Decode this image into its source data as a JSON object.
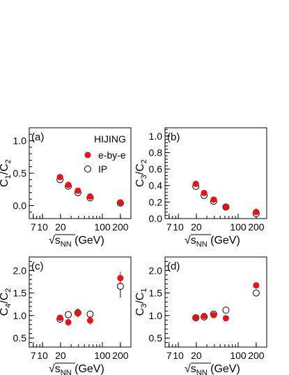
{
  "chart_data": [
    {
      "type": "scatter",
      "panel_label": "(a)",
      "x_axis": {
        "scale": "log",
        "range": [
          6,
          300
        ],
        "tick_labels": [
          "7",
          "10",
          "20",
          "100",
          "200"
        ],
        "label_main": "√s",
        "label_sub": "NN",
        "label_unit": " (GeV)"
      },
      "y_axis": {
        "range": [
          -0.2,
          1.2
        ],
        "tick_labels": [
          "0.0",
          "0.5",
          "1.0"
        ],
        "label_main": "C",
        "label_sub1": "1",
        "label_mid": "/C",
        "label_sub2": "2"
      },
      "annotation": "HIJING",
      "legend": {
        "position": "top-right"
      },
      "series": [
        {
          "name": "e-by-e",
          "marker": "filled-circle",
          "color": "#ee1111",
          "x": [
            19.6,
            27,
            39,
            62.4,
            200
          ],
          "y": [
            0.44,
            0.32,
            0.23,
            0.14,
            0.05
          ],
          "err": [
            0.02,
            0.02,
            0.02,
            0.02,
            0.02
          ]
        },
        {
          "name": "IP",
          "marker": "open-circle",
          "color": "#000000",
          "x": [
            19.6,
            27,
            39,
            62.4,
            200
          ],
          "y": [
            0.4,
            0.3,
            0.2,
            0.12,
            0.04
          ],
          "err": [
            0.02,
            0.02,
            0.02,
            0.02,
            0.02
          ]
        }
      ]
    },
    {
      "type": "scatter",
      "panel_label": "(b)",
      "x_axis": {
        "scale": "log",
        "range": [
          6,
          300
        ],
        "tick_labels": [
          "7",
          "10",
          "20",
          "100",
          "200"
        ],
        "label_main": "√s",
        "label_sub": "NN",
        "label_unit": " (GeV)"
      },
      "y_axis": {
        "range": [
          0,
          1.1
        ],
        "tick_labels": [
          "0.0",
          "0.2",
          "0.4",
          "0.6",
          "0.8",
          "1.0"
        ],
        "label_main": "C",
        "label_sub1": "3",
        "label_mid": "/C",
        "label_sub2": "2"
      },
      "series": [
        {
          "name": "e-by-e",
          "marker": "filled-circle",
          "color": "#ee1111",
          "x": [
            19.6,
            27,
            39,
            62.4,
            200
          ],
          "y": [
            0.42,
            0.31,
            0.23,
            0.14,
            0.08
          ],
          "err": [
            0.01,
            0.01,
            0.01,
            0.01,
            0.01
          ]
        },
        {
          "name": "IP",
          "marker": "open-circle",
          "color": "#000000",
          "x": [
            19.6,
            27,
            39,
            62.4,
            200
          ],
          "y": [
            0.39,
            0.28,
            0.21,
            0.14,
            0.06
          ],
          "err": [
            0.01,
            0.01,
            0.01,
            0.01,
            0.01
          ]
        }
      ]
    },
    {
      "type": "scatter",
      "panel_label": "(c)",
      "x_axis": {
        "scale": "log",
        "range": [
          6,
          300
        ],
        "tick_labels": [
          "7",
          "10",
          "20",
          "100",
          "200"
        ],
        "label_main": "√s",
        "label_sub": "NN",
        "label_unit": " (GeV)"
      },
      "y_axis": {
        "range": [
          0.3,
          2.3
        ],
        "tick_labels": [
          "0.5",
          "1.0",
          "1.5",
          "2.0"
        ],
        "label_main": "C",
        "label_sub1": "4",
        "label_mid": "/C",
        "label_sub2": "2"
      },
      "series": [
        {
          "name": "e-by-e",
          "marker": "filled-circle",
          "color": "#ee1111",
          "x": [
            19.6,
            27,
            39,
            62.4,
            200
          ],
          "y": [
            0.95,
            0.85,
            1.05,
            0.89,
            1.83
          ],
          "err": [
            0.06,
            0.08,
            0.08,
            0.1,
            0.15
          ]
        },
        {
          "name": "IP",
          "marker": "open-circle",
          "color": "#000000",
          "x": [
            19.6,
            27,
            39,
            62.4,
            200
          ],
          "y": [
            0.92,
            1.02,
            1.06,
            1.03,
            1.65
          ],
          "err": [
            0.08,
            0.08,
            0.1,
            0.08,
            0.25
          ]
        }
      ]
    },
    {
      "type": "scatter",
      "panel_label": "(d)",
      "x_axis": {
        "scale": "log",
        "range": [
          6,
          300
        ],
        "tick_labels": [
          "7",
          "10",
          "20",
          "100",
          "200"
        ],
        "label_main": "√s",
        "label_sub": "NN",
        "label_unit": " (GeV)"
      },
      "y_axis": {
        "range": [
          0.3,
          2.3
        ],
        "tick_labels": [
          "0.5",
          "1.0",
          "1.5",
          "2.0"
        ],
        "label_main": "C",
        "label_sub1": "3",
        "label_mid": "/C",
        "label_sub2": "1"
      },
      "series": [
        {
          "name": "e-by-e",
          "marker": "filled-circle",
          "color": "#ee1111",
          "x": [
            19.6,
            27,
            39,
            62.4,
            200
          ],
          "y": [
            0.95,
            0.99,
            1.01,
            0.94,
            1.67
          ],
          "err": [
            0.02,
            0.02,
            0.02,
            0.02,
            0.03
          ]
        },
        {
          "name": "IP",
          "marker": "open-circle",
          "color": "#000000",
          "x": [
            19.6,
            27,
            39,
            62.4,
            200
          ],
          "y": [
            0.95,
            0.97,
            1.03,
            1.12,
            1.5
          ],
          "err": [
            0.02,
            0.02,
            0.02,
            0.02,
            0.03
          ]
        }
      ]
    }
  ]
}
